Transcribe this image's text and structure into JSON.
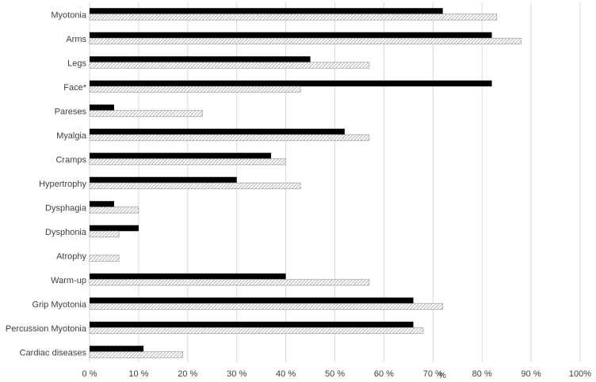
{
  "chart_data": {
    "type": "bar",
    "orientation": "horizontal",
    "categories": [
      "Myotonia",
      "Arms",
      "Legs",
      "Face*",
      "Pareses",
      "Myalgia",
      "Cramps",
      "Hypertrophy",
      "Dysphagia",
      "Dysphonia",
      "Atrophy",
      "Warm-up",
      "Grip Myotonia",
      "Percussion Myotonia",
      "Cardiac diseases"
    ],
    "series": [
      {
        "style": "solid",
        "color": "#000000",
        "values": [
          72,
          82,
          45,
          82,
          5,
          52,
          37,
          30,
          5,
          10,
          0,
          40,
          66,
          66,
          11
        ]
      },
      {
        "style": "hatched",
        "color": "#bfbfbf",
        "values": [
          83,
          88,
          57,
          43,
          23,
          57,
          40,
          43,
          10,
          6,
          6,
          57,
          72,
          68,
          19
        ]
      }
    ],
    "xlim": [
      0,
      100
    ],
    "x_ticks": [
      "0 %",
      "10 %",
      "20 %",
      "30 %",
      "40 %",
      "50 %",
      "60 %",
      "70 %",
      "80 %",
      "90 %",
      "100%"
    ],
    "xlabel": "%",
    "grid": true,
    "legend": "none"
  }
}
